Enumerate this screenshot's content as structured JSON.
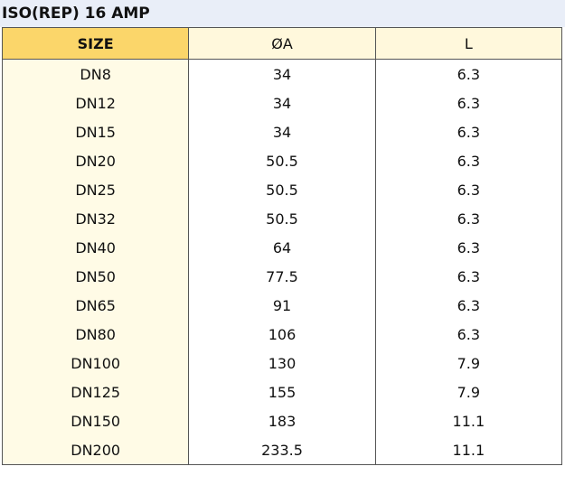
{
  "header": {
    "title": "ISO(REP) 16 AMP"
  },
  "table": {
    "columns": [
      "SIZE",
      "ØA",
      "L"
    ],
    "rows": [
      [
        "DN8",
        34,
        6.3
      ],
      [
        "DN12",
        34,
        6.3
      ],
      [
        "DN15",
        34,
        6.3
      ],
      [
        "DN20",
        50.5,
        6.3
      ],
      [
        "DN25",
        50.5,
        6.3
      ],
      [
        "DN32",
        50.5,
        6.3
      ],
      [
        "DN40",
        64,
        6.3
      ],
      [
        "DN50",
        77.5,
        6.3
      ],
      [
        "DN65",
        91,
        6.3
      ],
      [
        "DN80",
        106,
        6.3
      ],
      [
        "DN100",
        130,
        7.9
      ],
      [
        "DN125",
        155,
        7.9
      ],
      [
        "DN150",
        183,
        11.1
      ],
      [
        "DN200",
        233.5,
        11.1
      ]
    ]
  }
}
